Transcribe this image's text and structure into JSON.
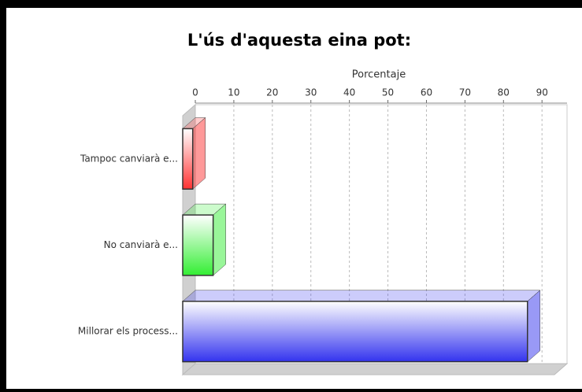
{
  "chart_data": {
    "type": "bar3d_horizontal",
    "title": "L'ús d'aquesta eina pot:",
    "x_label": "Porcentaje",
    "categories": [
      "Tampoc canviarà e...",
      "No canviarà e...",
      "Millorar els process..."
    ],
    "values": [
      2.6,
      7.9,
      89.5
    ],
    "colors": [
      "#ff3333",
      "#33ee33",
      "#3333ee"
    ],
    "xlim": [
      0,
      96.5
    ],
    "xticks": [
      0,
      10,
      20,
      30,
      40,
      50,
      60,
      70,
      80,
      90
    ],
    "grid": true
  }
}
